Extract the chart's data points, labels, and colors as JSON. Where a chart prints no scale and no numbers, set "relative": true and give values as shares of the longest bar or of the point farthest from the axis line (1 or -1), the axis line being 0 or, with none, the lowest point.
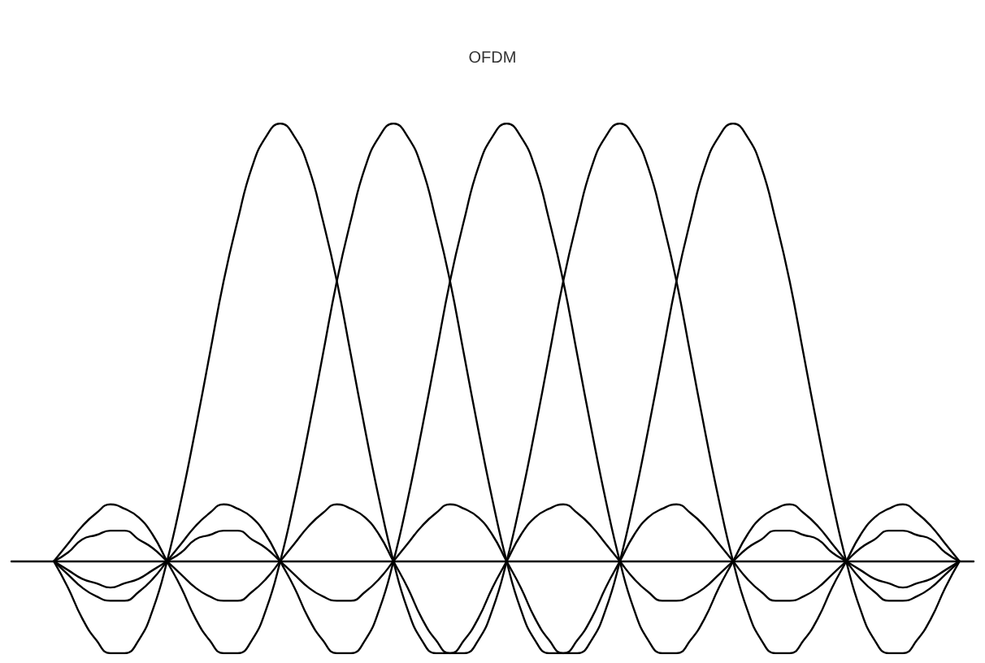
{
  "chart_data": {
    "type": "line",
    "title": "OFDM",
    "relative": true,
    "tick_labels": false,
    "marker": "none",
    "line_style": "solid",
    "categories": [
      null,
      null,
      null,
      null,
      null,
      null,
      null,
      null,
      null,
      null,
      null,
      null,
      null,
      null,
      null,
      null,
      null,
      null,
      null,
      null,
      null,
      null,
      null,
      null,
      null,
      null,
      null,
      null,
      null,
      null,
      null,
      null,
      null,
      null,
      null,
      null,
      null,
      null,
      null,
      null,
      null,
      null,
      null,
      null,
      null,
      null,
      null,
      null,
      null,
      null,
      null,
      null,
      null,
      null,
      null,
      null,
      null,
      null,
      null,
      null,
      null,
      null,
      null,
      null,
      null,
      null,
      null,
      null,
      null
    ],
    "series": [
      {
        "color": "#000000",
        "values": [
          null,
          null,
          null,
          0,
          -0.06,
          -0.13,
          -0.18,
          -0.21,
          -0.21,
          -0.18,
          -0.11,
          0,
          0.14,
          0.3,
          0.47,
          0.64,
          0.78,
          0.9,
          0.97,
          1,
          0.97,
          0.9,
          0.78,
          0.64,
          0.47,
          0.3,
          0.14,
          0,
          -0.11,
          -0.18,
          -0.21,
          -0.21,
          -0.18,
          -0.13,
          -0.06,
          0,
          0.06,
          0.1,
          0.12,
          0.13,
          0.11,
          0.08,
          0.04,
          0,
          -0.04,
          -0.07,
          -0.09,
          -0.09,
          -0.08,
          -0.06,
          -0.03,
          0,
          0.03,
          0.05,
          0.07,
          0.07,
          0.06,
          0.05,
          0.02,
          0,
          -0.02,
          -0.04,
          -0.05,
          -0.06,
          -0.05,
          -0.04,
          -0.02,
          0,
          null
        ]
      },
      {
        "color": "#000000",
        "values": [
          null,
          null,
          null,
          0,
          0.04,
          0.08,
          0.11,
          0.13,
          0.12,
          0.1,
          0.06,
          0,
          -0.06,
          -0.13,
          -0.18,
          -0.21,
          -0.21,
          -0.18,
          -0.11,
          0,
          0.14,
          0.3,
          0.47,
          0.64,
          0.78,
          0.9,
          0.97,
          1,
          0.97,
          0.9,
          0.78,
          0.64,
          0.47,
          0.3,
          0.14,
          0,
          -0.11,
          -0.18,
          -0.21,
          -0.21,
          -0.18,
          -0.13,
          -0.06,
          0,
          0.06,
          0.1,
          0.12,
          0.13,
          0.11,
          0.08,
          0.04,
          0,
          -0.04,
          -0.07,
          -0.09,
          -0.09,
          -0.08,
          -0.06,
          -0.03,
          0,
          0.03,
          0.05,
          0.07,
          0.07,
          0.06,
          0.05,
          0.02,
          0,
          null
        ]
      },
      {
        "color": "#000000",
        "values": [
          null,
          null,
          null,
          0,
          -0.03,
          -0.06,
          -0.08,
          -0.09,
          -0.09,
          -0.07,
          -0.04,
          0,
          0.04,
          0.08,
          0.11,
          0.13,
          0.12,
          0.1,
          0.06,
          0,
          -0.06,
          -0.13,
          -0.18,
          -0.21,
          -0.21,
          -0.18,
          -0.11,
          0,
          0.14,
          0.3,
          0.47,
          0.64,
          0.78,
          0.9,
          0.97,
          1,
          0.97,
          0.9,
          0.78,
          0.64,
          0.47,
          0.3,
          0.14,
          0,
          -0.11,
          -0.18,
          -0.21,
          -0.21,
          -0.18,
          -0.13,
          -0.06,
          0,
          0.06,
          0.1,
          0.12,
          0.13,
          0.11,
          0.08,
          0.04,
          0,
          -0.04,
          -0.07,
          -0.09,
          -0.09,
          -0.08,
          -0.06,
          -0.03,
          0,
          null
        ]
      },
      {
        "color": "#000000",
        "values": [
          null,
          null,
          null,
          0,
          0.02,
          0.05,
          0.06,
          0.07,
          0.07,
          0.05,
          0.03,
          0,
          -0.03,
          -0.06,
          -0.08,
          -0.09,
          -0.09,
          -0.07,
          -0.04,
          0,
          0.04,
          0.08,
          0.11,
          0.13,
          0.12,
          0.1,
          0.06,
          0,
          -0.06,
          -0.13,
          -0.18,
          -0.21,
          -0.21,
          -0.18,
          -0.11,
          0,
          0.14,
          0.3,
          0.47,
          0.64,
          0.78,
          0.9,
          0.97,
          1,
          0.97,
          0.9,
          0.78,
          0.64,
          0.47,
          0.3,
          0.14,
          0,
          -0.11,
          -0.18,
          -0.21,
          -0.21,
          -0.18,
          -0.13,
          -0.06,
          0,
          0.06,
          0.1,
          0.12,
          0.13,
          0.11,
          0.08,
          0.04,
          0,
          null
        ]
      },
      {
        "color": "#000000",
        "values": [
          null,
          null,
          null,
          0,
          -0.02,
          -0.04,
          -0.05,
          -0.06,
          -0.05,
          -0.04,
          -0.02,
          0,
          0.02,
          0.05,
          0.06,
          0.07,
          0.07,
          0.05,
          0.03,
          0,
          -0.03,
          -0.06,
          -0.08,
          -0.09,
          -0.09,
          -0.07,
          -0.04,
          0,
          0.04,
          0.08,
          0.11,
          0.13,
          0.12,
          0.1,
          0.06,
          0,
          -0.06,
          -0.13,
          -0.18,
          -0.21,
          -0.21,
          -0.18,
          -0.11,
          0,
          0.14,
          0.3,
          0.47,
          0.64,
          0.78,
          0.9,
          0.97,
          1,
          0.97,
          0.9,
          0.78,
          0.64,
          0.47,
          0.3,
          0.14,
          0,
          -0.11,
          -0.18,
          -0.21,
          -0.21,
          -0.18,
          -0.13,
          -0.06,
          0,
          null
        ]
      }
    ]
  }
}
